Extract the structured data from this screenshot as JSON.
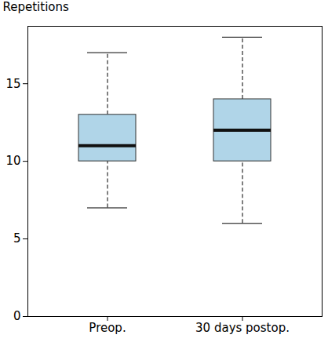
{
  "chart_data": {
    "type": "box",
    "y_label": "Repetitions",
    "categories": [
      "Preop.",
      "30 days postop."
    ],
    "values": [
      {
        "whisker_low": 7,
        "q1": 10,
        "median": 11,
        "q3": 13,
        "whisker_high": 17
      },
      {
        "whisker_low": 6,
        "q1": 10,
        "median": 12,
        "q3": 14,
        "whisker_high": 18
      }
    ],
    "color": "#b0d5e8",
    "ylim": [
      0,
      18.7
    ],
    "yticks": [
      0,
      5,
      10,
      15
    ],
    "grid": false
  }
}
